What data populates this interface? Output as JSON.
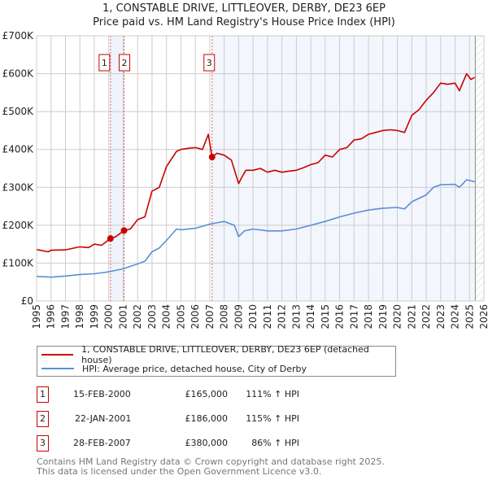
{
  "chart_data": {
    "type": "line",
    "title": "1, CONSTABLE DRIVE, LITTLEOVER, DERBY, DE23 6EP",
    "subtitle": "Price paid vs. HM Land Registry's House Price Index (HPI)",
    "xlim": [
      1995,
      2026
    ],
    "ylim": [
      0,
      700000
    ],
    "x_ticks": [
      "1995",
      "1996",
      "1997",
      "1998",
      "1999",
      "2000",
      "2001",
      "2002",
      "2003",
      "2004",
      "2005",
      "2006",
      "2007",
      "2008",
      "2009",
      "2010",
      "2011",
      "2012",
      "2013",
      "2014",
      "2015",
      "2016",
      "2017",
      "2018",
      "2019",
      "2020",
      "2021",
      "2022",
      "2023",
      "2024",
      "2025",
      "2026"
    ],
    "y_ticks": [
      {
        "v": 0,
        "label": "£0"
      },
      {
        "v": 100000,
        "label": "£100K"
      },
      {
        "v": 200000,
        "label": "£200K"
      },
      {
        "v": 300000,
        "label": "£300K"
      },
      {
        "v": 400000,
        "label": "£400K"
      },
      {
        "v": 500000,
        "label": "£500K"
      },
      {
        "v": 600000,
        "label": "£600K"
      },
      {
        "v": 700000,
        "label": "£700K"
      }
    ],
    "grid": true,
    "legend_placement": "below",
    "series": [
      {
        "name": "1, CONSTABLE DRIVE, LITTLEOVER, DERBY, DE23 6EP (detached house)",
        "color": "#cc0000",
        "x": [
          1995,
          1995.8,
          1996,
          1997,
          1998,
          1998.6,
          1999,
          1999.5,
          2000.12,
          2000.5,
          2001.06,
          2001.5,
          2002,
          2002.5,
          2003,
          2003.5,
          2004,
          2004.7,
          2005,
          2005.5,
          2006,
          2006.5,
          2006.9,
          2007.16,
          2007.5,
          2008,
          2008.5,
          2009,
          2009.2,
          2009.5,
          2010,
          2010.5,
          2011,
          2011.5,
          2012,
          2012.5,
          2013,
          2013.5,
          2014,
          2014.5,
          2015,
          2015.5,
          2016,
          2016.5,
          2017,
          2017.5,
          2018,
          2018.5,
          2019,
          2019.5,
          2020,
          2020.5,
          2021,
          2021.5,
          2022,
          2022.5,
          2023,
          2023.5,
          2024,
          2024.3,
          2024.8,
          2025.1,
          2025.35
        ],
        "y": [
          136000,
          130000,
          134000,
          135000,
          143000,
          141000,
          150000,
          147000,
          165000,
          170000,
          186000,
          190000,
          215000,
          222000,
          290000,
          300000,
          355000,
          395000,
          400000,
          403000,
          405000,
          400000,
          440000,
          380000,
          390000,
          385000,
          372000,
          310000,
          325000,
          345000,
          345000,
          350000,
          340000,
          345000,
          340000,
          343000,
          345000,
          352000,
          360000,
          365000,
          385000,
          380000,
          400000,
          405000,
          425000,
          428000,
          440000,
          445000,
          450000,
          452000,
          450000,
          445000,
          490000,
          505000,
          530000,
          550000,
          575000,
          572000,
          575000,
          555000,
          600000,
          585000,
          590000
        ]
      },
      {
        "name": "HPI: Average price, detached house, City of Derby",
        "color": "#5b8fd4",
        "x": [
          1995,
          1996,
          1997,
          1998,
          1999,
          2000,
          2001,
          2002,
          2002.5,
          2003,
          2003.5,
          2004,
          2004.7,
          2005,
          2006,
          2007,
          2008,
          2008.7,
          2009,
          2009.4,
          2010,
          2011,
          2012,
          2013,
          2014,
          2015,
          2016,
          2017,
          2018,
          2019,
          2020,
          2020.5,
          2021,
          2022,
          2022.5,
          2023,
          2024,
          2024.3,
          2024.8,
          2025.35
        ],
        "y": [
          65000,
          63000,
          66000,
          70000,
          72000,
          77000,
          85000,
          98000,
          105000,
          130000,
          140000,
          160000,
          190000,
          188000,
          192000,
          203000,
          210000,
          200000,
          170000,
          185000,
          190000,
          185000,
          185000,
          190000,
          200000,
          210000,
          222000,
          232000,
          240000,
          245000,
          247000,
          243000,
          262000,
          280000,
          300000,
          307000,
          308000,
          300000,
          320000,
          315000
        ]
      }
    ],
    "sales": [
      {
        "n": "1",
        "x": 2000.12,
        "y": 165000
      },
      {
        "n": "2",
        "x": 2001.06,
        "y": 186000
      },
      {
        "n": "3",
        "x": 2007.16,
        "y": 380000
      }
    ],
    "hatch_from": 2025.4
  },
  "legend": {
    "property": "1, CONSTABLE DRIVE, LITTLEOVER, DERBY, DE23 6EP (detached house)",
    "hpi": "HPI: Average price, detached house, City of Derby"
  },
  "table": [
    {
      "n": "1",
      "date": "15-FEB-2000",
      "price": "£165,000",
      "hpi": "111% ↑ HPI"
    },
    {
      "n": "2",
      "date": "22-JAN-2001",
      "price": "£186,000",
      "hpi": "115% ↑ HPI"
    },
    {
      "n": "3",
      "date": "28-FEB-2007",
      "price": "£380,000",
      "hpi": "86% ↑ HPI"
    }
  ],
  "footer": {
    "line1": "Contains HM Land Registry data © Crown copyright and database right 2025.",
    "line2": "This data is licensed under the Open Government Licence v3.0."
  }
}
